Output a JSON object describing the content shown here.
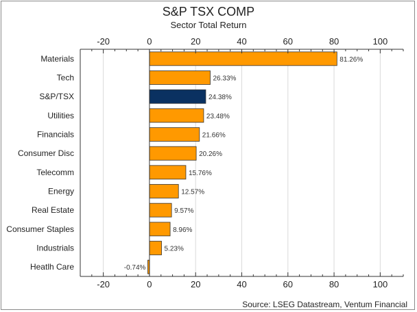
{
  "chart_data": {
    "type": "bar",
    "orientation": "horizontal",
    "title": "S&P TSX COMP",
    "subtitle": "Sector Total Return",
    "source": "Source: LSEG Datastream, Ventum Financial",
    "xlim": [
      -30,
      110
    ],
    "x_ticks": [
      -20,
      0,
      20,
      40,
      60,
      80,
      100
    ],
    "grid": true,
    "categories": [
      "Materials",
      "Tech",
      "S&P/TSX",
      "Utilities",
      "Financials",
      "Consumer Disc",
      "Telecomm",
      "Energy",
      "Real Estate",
      "Consumer Staples",
      "Industrials",
      "Heatlh Care"
    ],
    "values": [
      81.26,
      26.33,
      24.38,
      23.48,
      21.66,
      20.26,
      15.76,
      12.57,
      9.57,
      8.96,
      5.23,
      -0.74
    ],
    "labels": [
      "81.26%",
      "26.33%",
      "24.38%",
      "23.48%",
      "21.66%",
      "20.26%",
      "15.76%",
      "12.57%",
      "9.57%",
      "8.96%",
      "5.23%",
      "-0.74%"
    ],
    "highlight_category": "S&P/TSX",
    "colors": {
      "bar": "#ff9900",
      "highlight": "#0a3161",
      "bar_border": "#333333",
      "grid": "#d9d9d9",
      "axis": "#333333"
    }
  }
}
